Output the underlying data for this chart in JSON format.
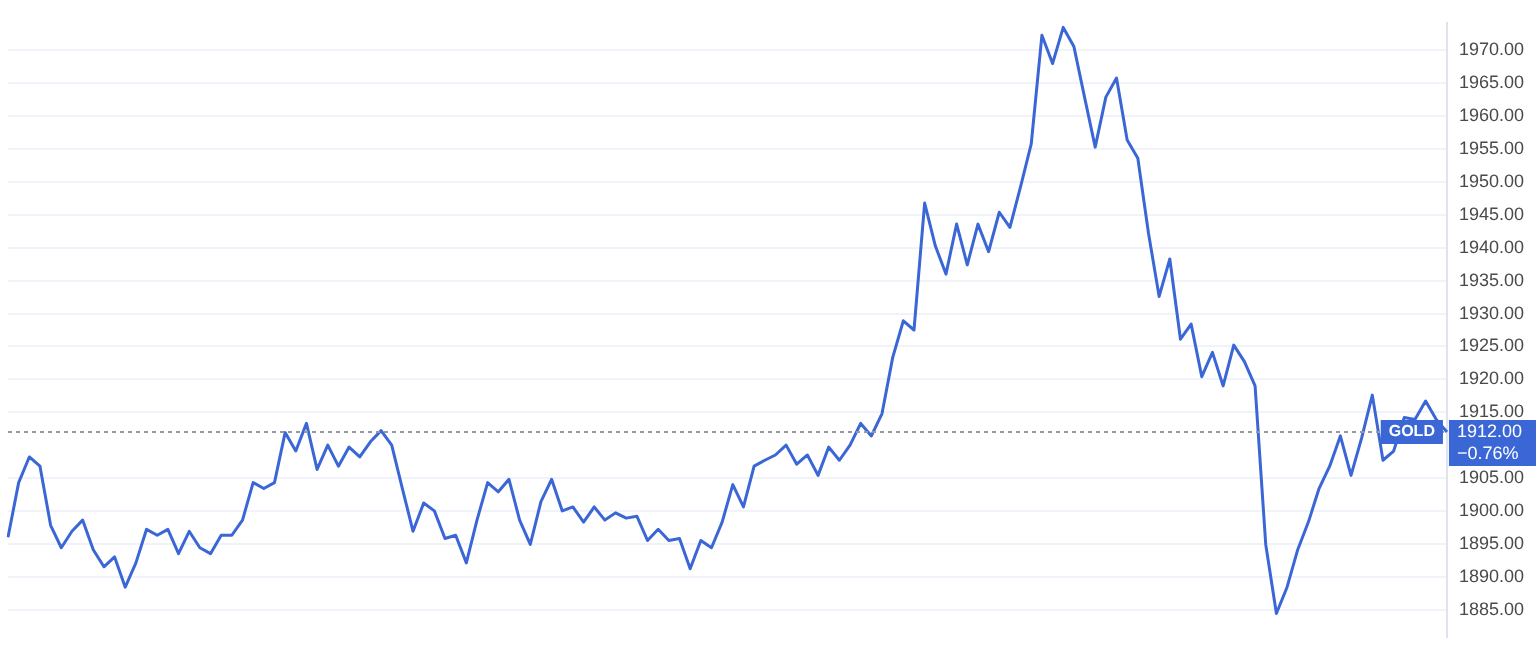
{
  "chart_data": {
    "type": "line",
    "categories": [
      null,
      null,
      null,
      null,
      null,
      null,
      null,
      null,
      null,
      null,
      null,
      null,
      null,
      null,
      null,
      null,
      null,
      null,
      null,
      null,
      null,
      null,
      null,
      null,
      null,
      null,
      null,
      null,
      null,
      null,
      null,
      null,
      null,
      null,
      null,
      null,
      null,
      null,
      null,
      null,
      null,
      null,
      null,
      null,
      null,
      null,
      null,
      null,
      null,
      null,
      null,
      null,
      null,
      null,
      null,
      null,
      null,
      null,
      null,
      null,
      null,
      null,
      null,
      null,
      null,
      null,
      null,
      null,
      null,
      null,
      null,
      null,
      null,
      null,
      null,
      null,
      null,
      null,
      null,
      null,
      null,
      null,
      null,
      null,
      null,
      null,
      null,
      null,
      null,
      null,
      null,
      null,
      null,
      null,
      null,
      null,
      null,
      null,
      null,
      null,
      null,
      null,
      null,
      null,
      null,
      null,
      null,
      null,
      null,
      null,
      null,
      null,
      null,
      null,
      null,
      null,
      null,
      null,
      null,
      null,
      null,
      null,
      null,
      null,
      null,
      null,
      null,
      null,
      null,
      null,
      null,
      null,
      null,
      null,
      null,
      null
    ],
    "series": [
      {
        "color": "#3a66d6",
        "values": [
          1896,
          1904.3,
          1908.2,
          1906.8,
          1897.8,
          1894.4,
          1896.9,
          1898.6,
          1894.1,
          1891.5,
          1893,
          1888.4,
          1892.1,
          1897.2,
          1896.3,
          1897.2,
          1893.5,
          1896.9,
          1894.4,
          1893.5,
          1896.3,
          1896.3,
          1898.6,
          1904.3,
          1903.4,
          1904.3,
          1911.9,
          1909.1,
          1913.3,
          1906.3,
          1910,
          1906.8,
          1909.7,
          1908.2,
          1910.5,
          1912.2,
          1910,
          1903.4,
          1896.9,
          1901.2,
          1900,
          1895.8,
          1896.3,
          1892.1,
          1898.6,
          1904.3,
          1902.9,
          1904.8,
          1898.6,
          1894.9,
          1901.4,
          1904.8,
          1900,
          1900.6,
          1898.3,
          1900.6,
          1898.6,
          1899.7,
          1898.9,
          1899.2,
          1895.5,
          1897.2,
          1895.5,
          1895.8,
          1891.2,
          1895.5,
          1894.4,
          1898.3,
          1904,
          1900.6,
          1906.8,
          1907.7,
          1908.5,
          1910,
          1907.1,
          1908.5,
          1905.4,
          1909.7,
          1907.7,
          1910,
          1913.3,
          1911.4,
          1914.8,
          1923.3,
          1928.9,
          1927.5,
          1946.8,
          1940.3,
          1936,
          1943.6,
          1937.4,
          1943.6,
          1939.4,
          1945.4,
          1943.1,
          1949.3,
          1955.8,
          1972.3,
          1968,
          1973.5,
          1970.6,
          1962.9,
          1955.3,
          1962.9,
          1965.8,
          1956.4,
          1953.6,
          1942.2,
          1932.6,
          1938.3,
          1926.1,
          1928.4,
          1920.4,
          1924.1,
          1919,
          1925.2,
          1922.7,
          1919,
          1894.9,
          1884.4,
          1888.4,
          1894.1,
          1898.3,
          1903.4,
          1906.8,
          1911.4,
          1905.4,
          1911.1,
          1917.6,
          1907.7,
          1909.1,
          1914.2,
          1913.9,
          1916.7,
          1913.9,
          1912
        ]
      }
    ],
    "ylim": [
      1880.8,
      1974.2
    ],
    "yticks": [
      {
        "value": 1885,
        "label": "1885.00"
      },
      {
        "value": 1890,
        "label": "1890.00"
      },
      {
        "value": 1895,
        "label": "1895.00"
      },
      {
        "value": 1900,
        "label": "1900.00"
      },
      {
        "value": 1905,
        "label": "1905.00"
      },
      {
        "value": 1915,
        "label": "1915.00"
      },
      {
        "value": 1920,
        "label": "1920.00"
      },
      {
        "value": 1925,
        "label": "1925.00"
      },
      {
        "value": 1930,
        "label": "1930.00"
      },
      {
        "value": 1935,
        "label": "1935.00"
      },
      {
        "value": 1940,
        "label": "1940.00"
      },
      {
        "value": 1945,
        "label": "1945.00"
      },
      {
        "value": 1950,
        "label": "1950.00"
      },
      {
        "value": 1955,
        "label": "1955.00"
      },
      {
        "value": 1960,
        "label": "1960.00"
      },
      {
        "value": 1965,
        "label": "1965.00"
      },
      {
        "value": 1970,
        "label": "1970.00"
      }
    ],
    "tick_labels": "y",
    "grid": "y",
    "marker": "none",
    "line_style": "solid",
    "ref_lines": [
      {
        "axis": "y",
        "value": 1912,
        "label": "1912.00",
        "color": "#9598a1",
        "line_style": "dotted"
      }
    ],
    "annotations": [
      {
        "text": "GOLD",
        "y": 1912
      },
      "−0.76%"
    ]
  }
}
